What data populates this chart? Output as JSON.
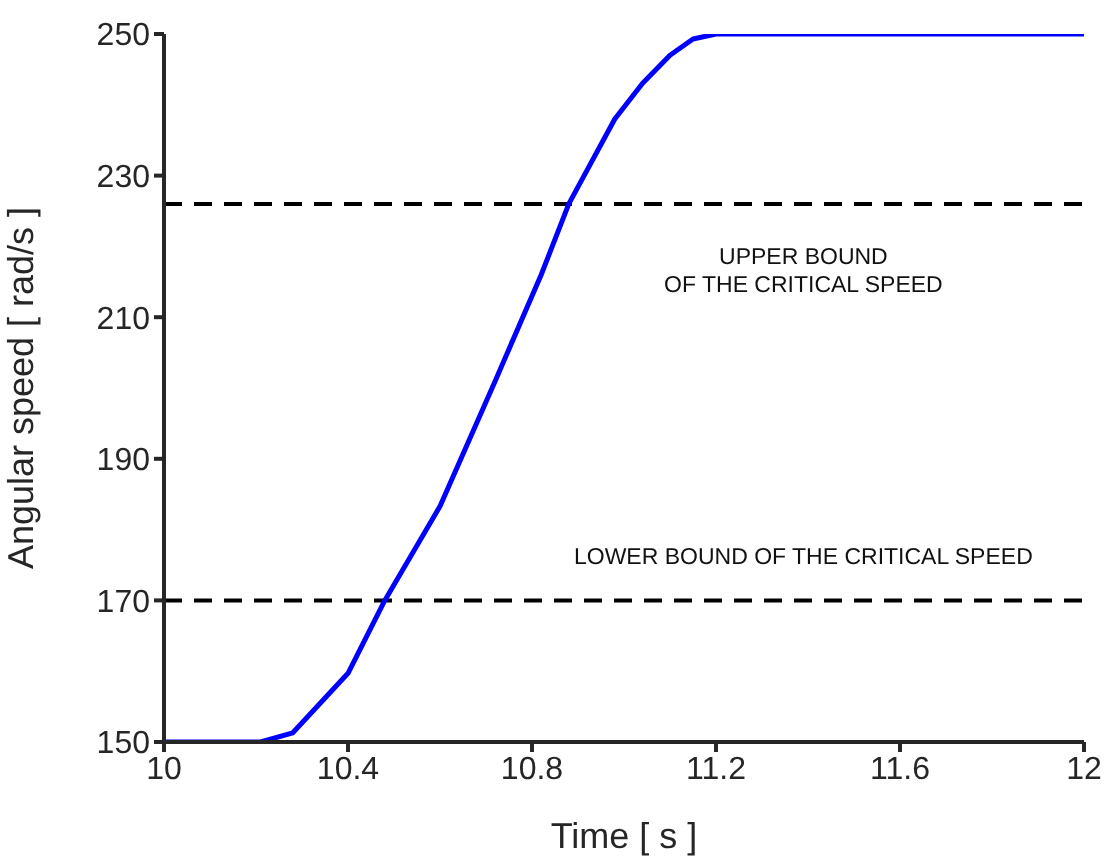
{
  "chart_data": {
    "type": "line",
    "xlabel": "Time   [ s ]",
    "ylabel": "Angular speed   [ rad/s ]",
    "x": [
      10,
      10.1,
      10.21,
      10.28,
      10.4,
      10.48,
      10.6,
      10.72,
      10.82,
      10.88,
      10.98,
      11.04,
      11.1,
      11.15,
      11.2,
      11.4,
      11.6,
      11.8,
      12
    ],
    "series": [
      {
        "color": "#0000ff",
        "values": [
          150,
          150,
          150,
          151.3,
          159.7,
          170,
          183.3,
          201,
          216,
          226,
          238,
          243,
          247,
          249.3,
          250,
          250,
          250,
          250,
          250
        ]
      }
    ],
    "xlim": [
      10,
      12
    ],
    "xticks": [
      10,
      10.4,
      10.8,
      11.2,
      11.6,
      12
    ],
    "ylim": [
      150,
      250
    ],
    "yticks": [
      150,
      170,
      190,
      210,
      230,
      250
    ],
    "ref_lines": [
      {
        "axis": "y",
        "value": 226,
        "label": "UPPER BOUND\nOF THE CRITICAL SPEED",
        "color": "#000000",
        "line_style": "dashed"
      },
      {
        "axis": "y",
        "value": 170,
        "label": "LOWER BOUND OF THE CRITICAL SPEED",
        "color": "#000000",
        "line_style": "dashed"
      }
    ],
    "grid": false,
    "legend": false,
    "marker": "none",
    "line_style": "solid"
  }
}
